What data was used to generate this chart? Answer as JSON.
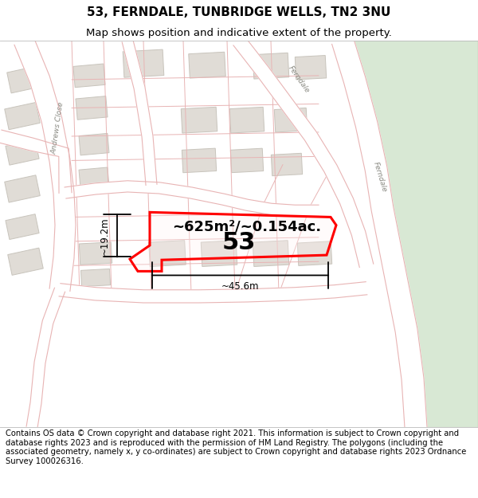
{
  "title": "53, FERNDALE, TUNBRIDGE WELLS, TN2 3NU",
  "subtitle": "Map shows position and indicative extent of the property.",
  "footer": "Contains OS data © Crown copyright and database right 2021. This information is subject to Crown copyright and database rights 2023 and is reproduced with the permission of HM Land Registry. The polygons (including the associated geometry, namely x, y co-ordinates) are subject to Crown copyright and database rights 2023 Ordnance Survey 100026316.",
  "area_label": "~625m²/~0.154ac.",
  "number_label": "53",
  "width_label": "~45.6m",
  "height_label": "~19.2m",
  "bg_color": "#f7f5f2",
  "road_line_color": "#e8b4b4",
  "road_fill_color": "#ffffff",
  "building_color": "#e0dcd6",
  "building_edge": "#c8c4bc",
  "green_color": "#d8e8d4",
  "green_edge": "#c4d8c0",
  "plot_color": "#ff0000",
  "title_fontsize": 11,
  "subtitle_fontsize": 9.5,
  "footer_fontsize": 7.2,
  "label_color": "#333333",
  "road_text_color": "#888880"
}
